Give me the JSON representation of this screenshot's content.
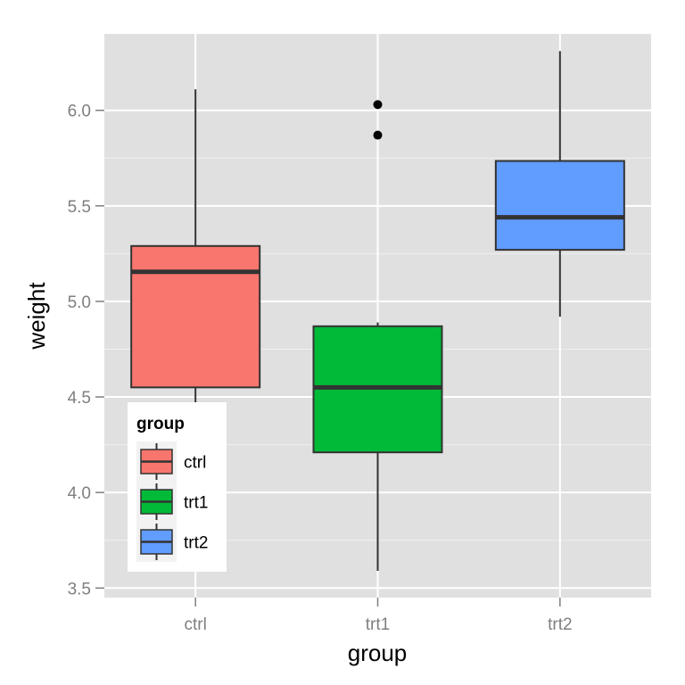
{
  "chart_data": {
    "type": "boxplot",
    "xlabel": "group",
    "ylabel": "weight",
    "categories": [
      "ctrl",
      "trt1",
      "trt2"
    ],
    "ylim": [
      3.45,
      6.4
    ],
    "yticks": [
      "3.5",
      "4.0",
      "4.5",
      "5.0",
      "5.5",
      "6.0"
    ],
    "boxes": [
      {
        "group": "ctrl",
        "min": 4.17,
        "q1": 4.55,
        "median": 5.155,
        "q3": 5.29,
        "max": 6.11,
        "outliers": [],
        "color": "#F8766D"
      },
      {
        "group": "trt1",
        "min": 3.59,
        "q1": 4.21,
        "median": 4.55,
        "q3": 4.87,
        "max": 4.89,
        "outliers": [
          5.87,
          6.03
        ],
        "color": "#00BA38"
      },
      {
        "group": "trt2",
        "min": 4.92,
        "q1": 5.27,
        "median": 5.44,
        "q3": 5.735,
        "max": 6.31,
        "outliers": [],
        "color": "#619CFF"
      }
    ],
    "legend": {
      "title": "group",
      "placement": "inside-bottom-left",
      "items": [
        "ctrl",
        "trt1",
        "trt2"
      ]
    },
    "grid": true,
    "panel_background": "#E0E0E0"
  }
}
